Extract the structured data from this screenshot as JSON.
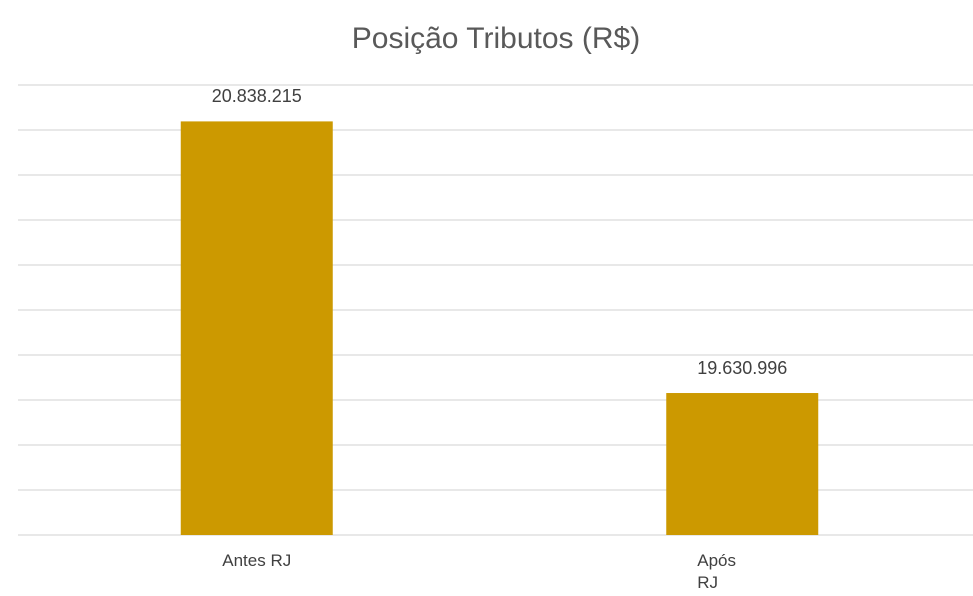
{
  "chart_data": {
    "type": "bar",
    "title": "Posição Tributos (R$)",
    "categories": [
      "Antes RJ",
      "Após RJ"
    ],
    "values": [
      20838215,
      19630996
    ],
    "value_labels": [
      "20.838.215",
      "19.630.996"
    ],
    "color": "#cc9900",
    "ylim": [
      19000000,
      21000000
    ],
    "yticks": [
      19000000,
      19200000,
      19400000,
      19600000,
      19800000,
      20000000,
      20200000,
      20400000,
      20600000,
      20800000,
      21000000
    ],
    "grid": true
  }
}
